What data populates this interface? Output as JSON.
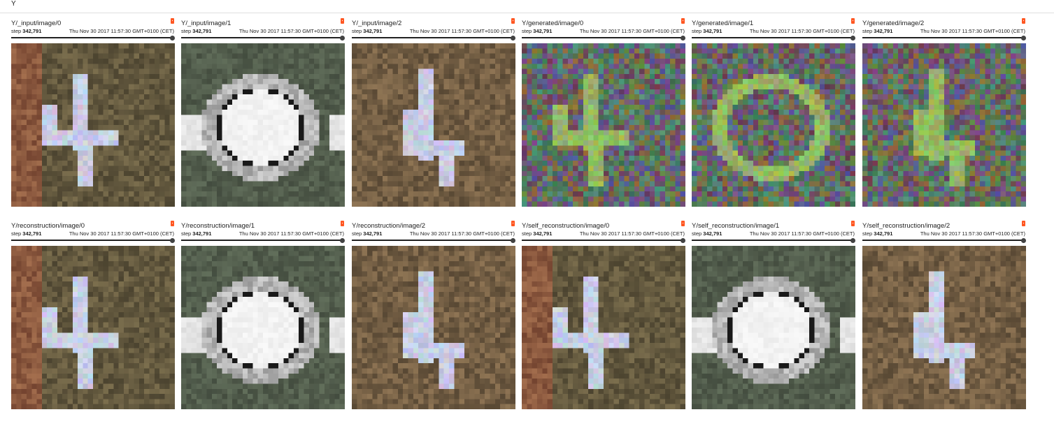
{
  "header": {
    "title": "Y"
  },
  "card_common": {
    "step_label": "step",
    "step_value": "342,791",
    "timestamp": "Thu Nov 30 2017 11:57:30 GMT+0100 (CET)",
    "accent_color": "#ff5722"
  },
  "rows": [
    {
      "cards": [
        {
          "title": "Y/_input/image/0",
          "kind": "digit4"
        },
        {
          "title": "Y/_input/image/1",
          "kind": "digit0"
        },
        {
          "title": "Y/_input/image/2",
          "kind": "digit4b"
        },
        {
          "title": "Y/generated/image/0",
          "kind": "noise4"
        },
        {
          "title": "Y/generated/image/1",
          "kind": "noise0"
        },
        {
          "title": "Y/generated/image/2",
          "kind": "noise4b"
        }
      ]
    },
    {
      "cards": [
        {
          "title": "Y/reconstruction/image/0",
          "kind": "digit4"
        },
        {
          "title": "Y/reconstruction/image/1",
          "kind": "digit0"
        },
        {
          "title": "Y/reconstruction/image/2",
          "kind": "digit4b"
        },
        {
          "title": "Y/self_reconstruction/image/0",
          "kind": "digit4"
        },
        {
          "title": "Y/self_reconstruction/image/1",
          "kind": "digit0"
        },
        {
          "title": "Y/self_reconstruction/image/2",
          "kind": "digit4b"
        }
      ]
    }
  ]
}
